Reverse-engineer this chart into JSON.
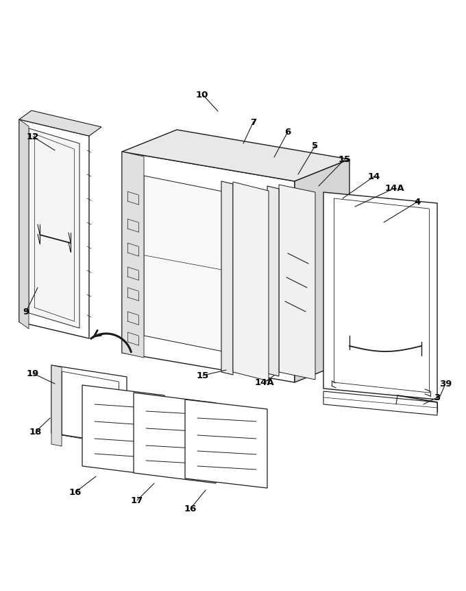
{
  "bg_color": "#ffffff",
  "lc": "#1a1a1a",
  "lw": 0.9,
  "fig_w": 6.8,
  "fig_h": 8.62,
  "dpi": 100
}
